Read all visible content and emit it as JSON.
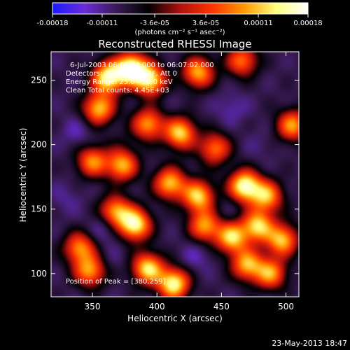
{
  "chart_data": {
    "type": "heatmap",
    "title": "Reconstructed RHESSI Image",
    "xlabel": "Heliocentric X (arcsec)",
    "ylabel": "Heliocentric Y (arcsec)",
    "xlim": [
      318,
      510
    ],
    "ylim": [
      82,
      272
    ],
    "xticks": [
      350,
      400,
      450,
      500
    ],
    "yticks": [
      100,
      150,
      200,
      250
    ],
    "grid": false,
    "colorbar": {
      "position": "top",
      "range": [
        -0.00018,
        0.00018
      ],
      "ticks": [
        {
          "value": -0.00018,
          "label": "-0.00018"
        },
        {
          "value": -0.00011,
          "label": "-0.00011"
        },
        {
          "value": -3.6e-05,
          "label": "-3.6e-05"
        },
        {
          "value": 3.6e-05,
          "label": "3.6e-05"
        },
        {
          "value": 0.00011,
          "label": "0.00011"
        },
        {
          "value": 0.00018,
          "label": "0.00018"
        }
      ],
      "unit_label": "(photons cm⁻² s⁻¹ asec⁻²)",
      "colors": [
        "#1a1aff",
        "#6a2bd8",
        "#3a1b55",
        "#000000",
        "#b01010",
        "#ff3300",
        "#ff9900",
        "#ffff80",
        "#ffffff"
      ]
    },
    "annotations": {
      "time_range": "6-Jul-2003 06:02:44.000 to 06:07:02.000",
      "detectors": "Detectors: 3F 5F 6F 7F 8F, Att 0",
      "energy": "Energy Range: 25.0 - 50.0 keV",
      "method": "Clean    Total counts: 4.45E+03",
      "peak": "Position of Peak = [380,259]"
    },
    "peak": {
      "x": 380,
      "y": 259
    },
    "sources": [
      {
        "x": 362,
        "y": 252,
        "value": 0.00015
      },
      {
        "x": 380,
        "y": 259,
        "value": 0.00018
      },
      {
        "x": 395,
        "y": 250,
        "value": 0.00013
      },
      {
        "x": 432,
        "y": 256,
        "value": 0.0001
      },
      {
        "x": 466,
        "y": 265,
        "value": 7e-05
      },
      {
        "x": 355,
        "y": 228,
        "value": 0.00011
      },
      {
        "x": 393,
        "y": 216,
        "value": 9e-05
      },
      {
        "x": 418,
        "y": 209,
        "value": 0.00012
      },
      {
        "x": 505,
        "y": 215,
        "value": 9e-05
      },
      {
        "x": 445,
        "y": 197,
        "value": 7e-05
      },
      {
        "x": 350,
        "y": 187,
        "value": 8e-05
      },
      {
        "x": 373,
        "y": 184,
        "value": 0.0001
      },
      {
        "x": 410,
        "y": 170,
        "value": 0.00011
      },
      {
        "x": 432,
        "y": 160,
        "value": 0.00012
      },
      {
        "x": 468,
        "y": 168,
        "value": 0.00016
      },
      {
        "x": 485,
        "y": 160,
        "value": 0.0001
      },
      {
        "x": 383,
        "y": 138,
        "value": 0.00015
      },
      {
        "x": 368,
        "y": 148,
        "value": 0.0001
      },
      {
        "x": 437,
        "y": 137,
        "value": 9e-05
      },
      {
        "x": 458,
        "y": 128,
        "value": 0.00012
      },
      {
        "x": 478,
        "y": 137,
        "value": 0.00012
      },
      {
        "x": 497,
        "y": 126,
        "value": 0.00011
      },
      {
        "x": 340,
        "y": 120,
        "value": 8e-05
      },
      {
        "x": 348,
        "y": 102,
        "value": 9e-05
      },
      {
        "x": 393,
        "y": 104,
        "value": 0.00013
      },
      {
        "x": 413,
        "y": 92,
        "value": 0.00015
      },
      {
        "x": 470,
        "y": 107,
        "value": 0.0001
      },
      {
        "x": 488,
        "y": 100,
        "value": 9e-05
      }
    ],
    "negative_regions": [
      {
        "x": 338,
        "y": 210,
        "value": -0.00012
      },
      {
        "x": 330,
        "y": 158,
        "value": -0.00011
      },
      {
        "x": 360,
        "y": 136,
        "value": -0.00013
      },
      {
        "x": 410,
        "y": 238,
        "value": -9e-05
      },
      {
        "x": 458,
        "y": 228,
        "value": -0.00012
      },
      {
        "x": 480,
        "y": 200,
        "value": -0.0001
      },
      {
        "x": 425,
        "y": 187,
        "value": -8e-05
      },
      {
        "x": 455,
        "y": 148,
        "value": -0.0001
      },
      {
        "x": 430,
        "y": 113,
        "value": -0.00012
      },
      {
        "x": 365,
        "y": 112,
        "value": -0.0001
      },
      {
        "x": 500,
        "y": 145,
        "value": -8e-05
      },
      {
        "x": 372,
        "y": 200,
        "value": -7e-05
      }
    ]
  },
  "footer": {
    "timestamp": "23-May-2013 18:47"
  }
}
